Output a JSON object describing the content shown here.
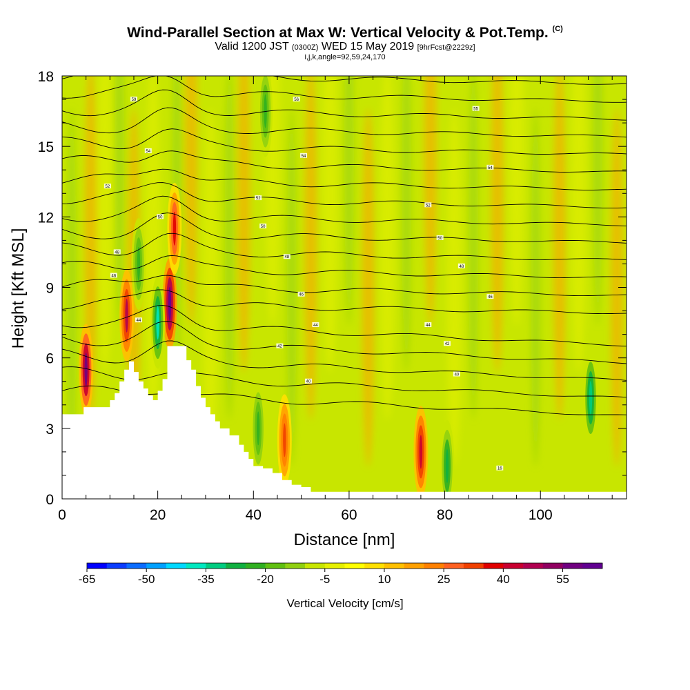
{
  "chart_data": {
    "type": "heatmap",
    "title": "Wind-Parallel Section at Max W: Vertical Velocity & Pot.Temp.",
    "title_mark": "(C)",
    "subtitle_main": "Valid 1200 JST",
    "subtitle_utc": "(0300Z)",
    "subtitle_date": "WED 15 May 2019",
    "subtitle_fcst": "[9hrFcst@2229z]",
    "subtitle2": "i,j,k,angle=92,59,24,170",
    "xlabel": "Distance [nm]",
    "ylabel": "Height [Kft MSL]",
    "xlim": [
      0,
      118
    ],
    "ylim": [
      0,
      18
    ],
    "x_ticks": [
      0,
      20,
      40,
      60,
      80,
      100
    ],
    "x_tick_labels": [
      "0",
      "20",
      "40",
      "60",
      "80",
      "100"
    ],
    "y_ticks": [
      0,
      3,
      6,
      9,
      12,
      15,
      18
    ],
    "y_tick_labels": [
      "0",
      "3",
      "6",
      "9",
      "12",
      "15",
      "18"
    ],
    "colorbar": {
      "label": "Vertical Velocity [cm/s]",
      "min": -65,
      "max": 65,
      "step": 5,
      "tick_values": [
        -65,
        -50,
        -35,
        -20,
        -5,
        10,
        25,
        40,
        55
      ],
      "tick_labels": [
        "-65",
        "-50",
        "-35",
        "-20",
        "-5",
        "10",
        "25",
        "40",
        "55"
      ],
      "colors": [
        "#0000ff",
        "#0a3cff",
        "#0a6cff",
        "#00a0ff",
        "#00d8ff",
        "#00e8c0",
        "#00cc80",
        "#10b040",
        "#30b020",
        "#60c010",
        "#90d010",
        "#c8e600",
        "#e6f000",
        "#ffff00",
        "#ffe000",
        "#ffc000",
        "#ffa000",
        "#ff8000",
        "#ff6020",
        "#f04000",
        "#e00000",
        "#c80030",
        "#b00050",
        "#900060",
        "#700080",
        "#600090"
      ]
    },
    "terrain_profile": {
      "distance_nm": [
        0,
        3.5,
        4.5,
        6,
        7,
        8,
        9,
        10,
        11,
        12,
        13,
        14,
        15,
        16,
        17,
        18,
        19,
        20,
        21,
        22,
        25,
        26,
        27,
        28,
        29,
        30,
        31,
        32,
        33,
        35,
        37,
        38,
        39,
        40,
        42,
        44,
        46,
        48,
        50,
        52,
        56,
        60,
        70,
        80,
        90,
        100,
        110,
        118
      ],
      "height_kft": [
        3.6,
        3.6,
        3.9,
        3.9,
        3.9,
        3.9,
        3.9,
        4.2,
        4.5,
        5.0,
        5.5,
        5.85,
        5.4,
        5.0,
        4.7,
        4.4,
        4.2,
        4.6,
        5.1,
        6.5,
        6.5,
        5.9,
        5.5,
        4.8,
        4.3,
        3.9,
        3.6,
        3.3,
        3.0,
        2.7,
        2.3,
        2.0,
        1.7,
        1.4,
        1.3,
        1.1,
        0.8,
        0.6,
        0.5,
        0.3,
        0.3,
        0.3,
        0.3,
        0.3,
        0.3,
        0.3,
        0.3,
        0.3
      ]
    },
    "updraft_cores": [
      {
        "x_nm": 5,
        "y_kft": 5.5,
        "w_cms": 55
      },
      {
        "x_nm": 13.5,
        "y_kft": 7.8,
        "w_cms": 45
      },
      {
        "x_nm": 22.5,
        "y_kft": 8.3,
        "w_cms": 60
      },
      {
        "x_nm": 23.5,
        "y_kft": 11.5,
        "w_cms": 35
      },
      {
        "x_nm": 46.5,
        "y_kft": 2.5,
        "w_cms": 30
      },
      {
        "x_nm": 75,
        "y_kft": 2.0,
        "w_cms": 40
      }
    ],
    "downdraft_cores": [
      {
        "x_nm": 20,
        "y_kft": 7.5,
        "w_cms": -40
      },
      {
        "x_nm": 16,
        "y_kft": 10,
        "w_cms": -25
      },
      {
        "x_nm": 41,
        "y_kft": 3.0,
        "w_cms": -25
      },
      {
        "x_nm": 80.5,
        "y_kft": 1.4,
        "w_cms": -30
      },
      {
        "x_nm": 110.5,
        "y_kft": 4.3,
        "w_cms": -35
      },
      {
        "x_nm": 42.5,
        "y_kft": 16.5,
        "w_cms": -25
      }
    ],
    "isentrope_labels": [
      {
        "x_nm": 15,
        "y_kft": 17.0,
        "text": "59"
      },
      {
        "x_nm": 49,
        "y_kft": 17.0,
        "text": "56"
      },
      {
        "x_nm": 86.5,
        "y_kft": 16.6,
        "text": "55"
      },
      {
        "x_nm": 18,
        "y_kft": 14.8,
        "text": "54"
      },
      {
        "x_nm": 50.5,
        "y_kft": 14.6,
        "text": "54"
      },
      {
        "x_nm": 89.5,
        "y_kft": 14.1,
        "text": "54"
      },
      {
        "x_nm": 9.5,
        "y_kft": 13.3,
        "text": "52"
      },
      {
        "x_nm": 41,
        "y_kft": 12.8,
        "text": "52"
      },
      {
        "x_nm": 76.5,
        "y_kft": 12.5,
        "text": "52"
      },
      {
        "x_nm": 20.5,
        "y_kft": 12.0,
        "text": "50"
      },
      {
        "x_nm": 42,
        "y_kft": 11.6,
        "text": "50"
      },
      {
        "x_nm": 79,
        "y_kft": 11.1,
        "text": "50"
      },
      {
        "x_nm": 11.5,
        "y_kft": 10.5,
        "text": "48"
      },
      {
        "x_nm": 47,
        "y_kft": 10.3,
        "text": "48"
      },
      {
        "x_nm": 83.5,
        "y_kft": 9.9,
        "text": "48"
      },
      {
        "x_nm": 10.8,
        "y_kft": 9.5,
        "text": "46"
      },
      {
        "x_nm": 50,
        "y_kft": 8.7,
        "text": "46"
      },
      {
        "x_nm": 89.5,
        "y_kft": 8.6,
        "text": "46"
      },
      {
        "x_nm": 16,
        "y_kft": 7.6,
        "text": "44"
      },
      {
        "x_nm": 53,
        "y_kft": 7.4,
        "text": "44"
      },
      {
        "x_nm": 76.5,
        "y_kft": 7.4,
        "text": "44"
      },
      {
        "x_nm": 45.5,
        "y_kft": 6.5,
        "text": "42"
      },
      {
        "x_nm": 80.5,
        "y_kft": 6.6,
        "text": "42"
      },
      {
        "x_nm": 51.5,
        "y_kft": 5.0,
        "text": "40"
      },
      {
        "x_nm": 82.5,
        "y_kft": 5.3,
        "text": "40"
      },
      {
        "x_nm": 91.5,
        "y_kft": 1.3,
        "text": "16"
      }
    ]
  }
}
